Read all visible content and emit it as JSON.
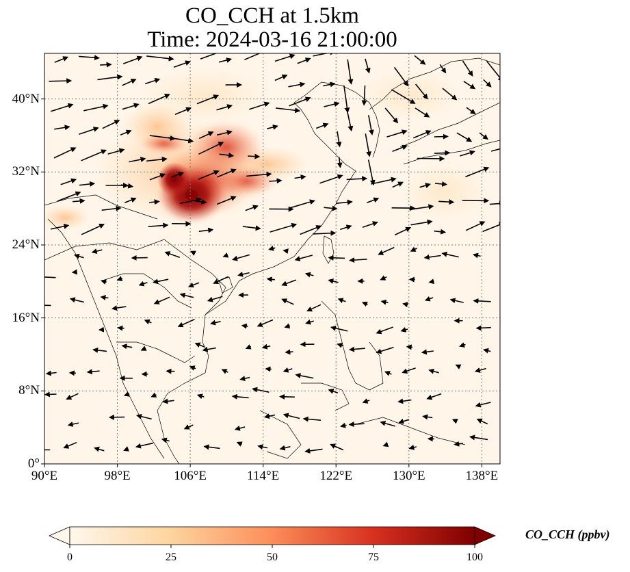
{
  "title": {
    "line1": "CO_CCH at 1.5km",
    "line2": "Time: 2024-03-16 21:00:00"
  },
  "map": {
    "extent": {
      "lon_min": 90,
      "lon_max": 140,
      "lat_min": 0,
      "lat_max": 45
    },
    "lat_labels": [
      {
        "lat": 40,
        "label": "40°N"
      },
      {
        "lat": 32,
        "label": "32°N"
      },
      {
        "lat": 24,
        "label": "24°N"
      },
      {
        "lat": 16,
        "label": "16°N"
      },
      {
        "lat": 8,
        "label": "8°N"
      },
      {
        "lat": 0,
        "label": "0°"
      }
    ],
    "lon_labels": [
      {
        "lon": 90,
        "label": "90°E"
      },
      {
        "lon": 98,
        "label": "98°E"
      },
      {
        "lon": 106,
        "label": "106°E"
      },
      {
        "lon": 114,
        "label": "114°E"
      },
      {
        "lon": 122,
        "label": "122°E"
      },
      {
        "lon": 130,
        "label": "130°E"
      },
      {
        "lon": 138,
        "label": "138°E"
      }
    ],
    "gridlines": "dotted",
    "field_variable": "CO_CCH",
    "vector_field": "wind"
  },
  "colorbar": {
    "label": "CO_CCH (ppbv)",
    "min": 0,
    "max": 100,
    "extend": "both",
    "ticks": [
      {
        "value": 0,
        "label": "0"
      },
      {
        "value": 25,
        "label": "25"
      },
      {
        "value": 50,
        "label": "50"
      },
      {
        "value": 75,
        "label": "75"
      },
      {
        "value": 100,
        "label": "100"
      }
    ],
    "colormap": "OrRd",
    "stops": [
      "#fff7ec",
      "#fdd49e",
      "#fc8d59",
      "#d7301f",
      "#7f0000"
    ]
  }
}
